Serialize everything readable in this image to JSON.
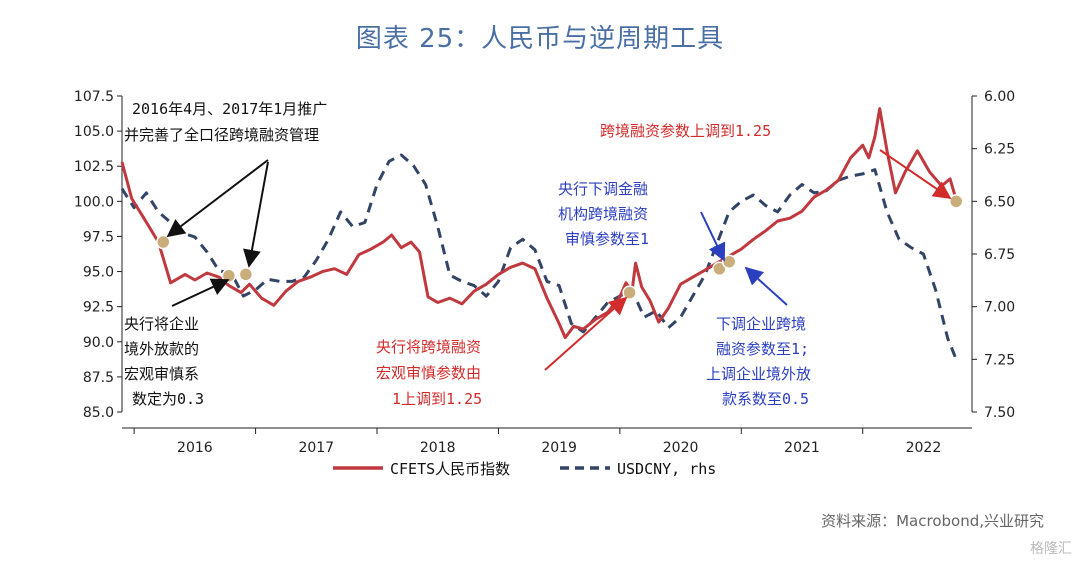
{
  "title": "图表 25：人民币与逆周期工具",
  "source": "资料来源：Macrobond,兴业研究",
  "watermark": "格隆汇",
  "colors": {
    "cfets": "#c0393e",
    "usdcny": "#334466",
    "marker": "#c9ad7a",
    "red_text": "#d22b2b",
    "blue_text": "#2b3fbf",
    "black_text": "#111111"
  },
  "chart_data": {
    "type": "line",
    "x_range": [
      2015.9,
      2022.9
    ],
    "left_axis": {
      "range": [
        85,
        107.5
      ],
      "ticks": [
        "107.5",
        "105.0",
        "102.5",
        "100.0",
        "97.5",
        "95.0",
        "92.5",
        "90.0",
        "87.5",
        "85.0"
      ]
    },
    "right_axis": {
      "range": [
        6.0,
        7.5
      ],
      "inverted": true,
      "ticks": [
        "6.00",
        "6.25",
        "6.50",
        "6.75",
        "7.00",
        "7.25",
        "7.50"
      ]
    },
    "year_labels": [
      "2016",
      "2017",
      "2018",
      "2019",
      "2020",
      "2021",
      "2022"
    ],
    "series": [
      {
        "name": "CFETS人民币指数",
        "axis": "left",
        "style": "solid",
        "x": [
          2015.9,
          2015.98,
          2016.08,
          2016.2,
          2016.3,
          2016.42,
          2016.5,
          2016.6,
          2016.7,
          2016.78,
          2016.88,
          2016.95,
          2017.05,
          2017.15,
          2017.25,
          2017.35,
          2017.45,
          2017.55,
          2017.65,
          2017.75,
          2017.85,
          2017.95,
          2018.05,
          2018.12,
          2018.2,
          2018.28,
          2018.35,
          2018.42,
          2018.5,
          2018.6,
          2018.7,
          2018.8,
          2018.9,
          2019.0,
          2019.1,
          2019.2,
          2019.3,
          2019.4,
          2019.5,
          2019.55,
          2019.62,
          2019.7,
          2019.8,
          2019.9,
          2020.0,
          2020.05,
          2020.1,
          2020.13,
          2020.18,
          2020.25,
          2020.32,
          2020.4,
          2020.5,
          2020.6,
          2020.7,
          2020.8,
          2020.9,
          2021.0,
          2021.1,
          2021.2,
          2021.3,
          2021.4,
          2021.5,
          2021.6,
          2021.7,
          2021.8,
          2021.9,
          2022.0,
          2022.05,
          2022.1,
          2022.14,
          2022.2,
          2022.27,
          2022.35,
          2022.45,
          2022.55,
          2022.65,
          2022.72,
          2022.77
        ],
        "values": [
          102.8,
          100.2,
          98.8,
          97.1,
          94.2,
          94.8,
          94.4,
          94.9,
          94.6,
          94.0,
          93.5,
          94.1,
          93.1,
          92.6,
          93.6,
          94.3,
          94.6,
          95.0,
          95.2,
          94.8,
          96.2,
          96.6,
          97.1,
          97.6,
          96.7,
          97.1,
          96.4,
          93.2,
          92.8,
          93.1,
          92.7,
          93.6,
          94.1,
          94.8,
          95.3,
          95.6,
          95.2,
          93.1,
          91.3,
          90.3,
          91.1,
          90.9,
          91.6,
          92.1,
          93.2,
          94.2,
          93.6,
          95.6,
          93.9,
          92.9,
          91.4,
          92.4,
          94.1,
          94.6,
          95.1,
          95.6,
          96.1,
          96.6,
          97.3,
          97.9,
          98.6,
          98.8,
          99.3,
          100.3,
          100.8,
          101.5,
          103.1,
          104.0,
          103.1,
          104.6,
          106.6,
          103.6,
          100.6,
          102.1,
          103.6,
          102.1,
          101.1,
          101.6,
          100.1
        ]
      },
      {
        "name": "USDCNY, rhs",
        "axis": "right",
        "style": "dashed",
        "x": [
          2015.9,
          2016.0,
          2016.1,
          2016.2,
          2016.3,
          2016.4,
          2016.5,
          2016.6,
          2016.7,
          2016.8,
          2016.9,
          2017.0,
          2017.1,
          2017.2,
          2017.3,
          2017.4,
          2017.5,
          2017.6,
          2017.7,
          2017.8,
          2017.9,
          2018.0,
          2018.1,
          2018.2,
          2018.3,
          2018.4,
          2018.5,
          2018.6,
          2018.7,
          2018.8,
          2018.9,
          2019.0,
          2019.1,
          2019.2,
          2019.3,
          2019.4,
          2019.5,
          2019.6,
          2019.7,
          2019.8,
          2019.9,
          2020.0,
          2020.1,
          2020.2,
          2020.3,
          2020.4,
          2020.5,
          2020.6,
          2020.7,
          2020.8,
          2020.9,
          2021.0,
          2021.1,
          2021.2,
          2021.3,
          2021.4,
          2021.5,
          2021.6,
          2021.7,
          2021.8,
          2021.9,
          2022.0,
          2022.1,
          2022.2,
          2022.3,
          2022.4,
          2022.5,
          2022.6,
          2022.7,
          2022.77
        ],
        "values": [
          6.44,
          6.53,
          6.46,
          6.55,
          6.6,
          6.65,
          6.67,
          6.74,
          6.83,
          6.84,
          6.95,
          6.92,
          6.87,
          6.88,
          6.88,
          6.86,
          6.78,
          6.68,
          6.55,
          6.62,
          6.6,
          6.42,
          6.31,
          6.28,
          6.33,
          6.42,
          6.62,
          6.85,
          6.88,
          6.9,
          6.95,
          6.88,
          6.72,
          6.68,
          6.73,
          6.88,
          6.9,
          7.08,
          7.12,
          7.05,
          6.98,
          6.95,
          6.92,
          7.05,
          7.02,
          7.1,
          7.05,
          6.95,
          6.85,
          6.7,
          6.55,
          6.5,
          6.47,
          6.52,
          6.55,
          6.47,
          6.42,
          6.46,
          6.45,
          6.4,
          6.38,
          6.37,
          6.35,
          6.55,
          6.68,
          6.72,
          6.75,
          6.92,
          7.15,
          7.25
        ]
      }
    ],
    "markers": [
      {
        "x": 2016.24,
        "y": 97.1
      },
      {
        "x": 2016.78,
        "y": 94.7
      },
      {
        "x": 2016.92,
        "y": 94.8
      },
      {
        "x": 2020.08,
        "y": 93.5
      },
      {
        "x": 2020.82,
        "y": 95.2
      },
      {
        "x": 2020.9,
        "y": 95.7
      },
      {
        "x": 2022.77,
        "y": 100.0
      }
    ],
    "legend": [
      "CFETS人民币指数",
      "USDCNY, rhs"
    ]
  },
  "annotations": {
    "top_left": [
      "2016年4月、2017年1月推广",
      "并完善了全口径跨境融资管理"
    ],
    "bottom_left": [
      "央行将企业",
      "境外放款的",
      "宏观审慎系",
      "数定为0.3"
    ],
    "middle_red": [
      "央行将跨境融资",
      "宏观审慎参数由",
      "1上调到1.25"
    ],
    "middle_blue": [
      "央行下调金融",
      "机构跨境融资",
      "审慎参数至1"
    ],
    "right_blue": [
      "下调企业跨境",
      "融资参数至1;",
      "上调企业境外放",
      "款系数至0.5"
    ],
    "top_right_red": "跨境融资参数上调到1.25"
  }
}
